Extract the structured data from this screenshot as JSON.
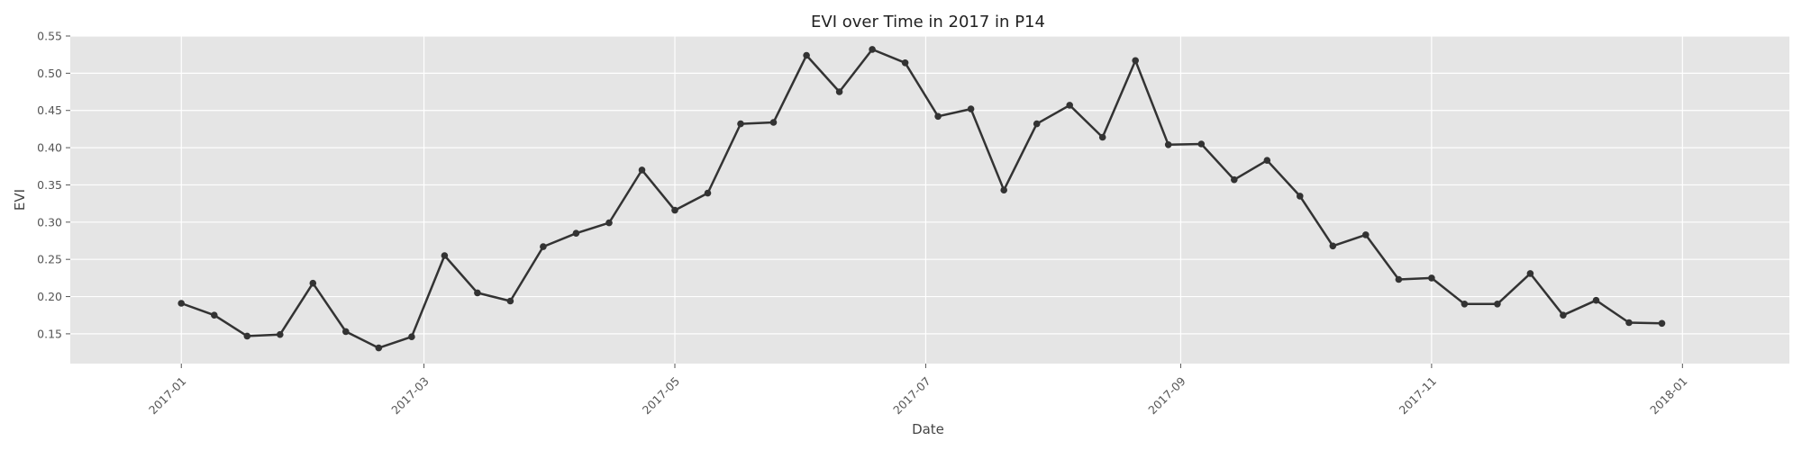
{
  "chart_data": {
    "type": "line",
    "title": "EVI over Time in 2017 in P14",
    "xlabel": "Date",
    "ylabel": "EVI",
    "xlim": [
      "2016-12-05",
      "2018-01-27"
    ],
    "ylim": [
      0.11,
      0.55
    ],
    "x_ticks": [
      "2017-01",
      "2017-03",
      "2017-05",
      "2017-07",
      "2017-09",
      "2017-11",
      "2018-01"
    ],
    "x_tick_dates": [
      "2017-01-01",
      "2017-03-01",
      "2017-05-01",
      "2017-07-01",
      "2017-09-01",
      "2017-11-01",
      "2018-01-01"
    ],
    "y_ticks": [
      "0.15",
      "0.20",
      "0.25",
      "0.30",
      "0.35",
      "0.40",
      "0.45",
      "0.50",
      "0.55"
    ],
    "grid": true,
    "legend": "none",
    "colors": {
      "background": "#e5e5e5",
      "grid": "#ffffff",
      "line": "#333333"
    },
    "series": [
      {
        "x": [
          "2017-01-01",
          "2017-01-09",
          "2017-01-17",
          "2017-01-25",
          "2017-02-02",
          "2017-02-10",
          "2017-02-18",
          "2017-02-26",
          "2017-03-06",
          "2017-03-14",
          "2017-03-22",
          "2017-03-30",
          "2017-04-07",
          "2017-04-15",
          "2017-04-23",
          "2017-05-01",
          "2017-05-09",
          "2017-05-17",
          "2017-05-25",
          "2017-06-02",
          "2017-06-10",
          "2017-06-18",
          "2017-06-26",
          "2017-07-04",
          "2017-07-12",
          "2017-07-20",
          "2017-07-28",
          "2017-08-05",
          "2017-08-13",
          "2017-08-21",
          "2017-08-29",
          "2017-09-06",
          "2017-09-14",
          "2017-09-22",
          "2017-09-30",
          "2017-10-08",
          "2017-10-16",
          "2017-10-24",
          "2017-11-01",
          "2017-11-09",
          "2017-11-17",
          "2017-11-25",
          "2017-12-03",
          "2017-12-11",
          "2017-12-19",
          "2017-12-27"
        ],
        "values": [
          0.191,
          0.175,
          0.147,
          0.149,
          0.218,
          0.153,
          0.131,
          0.146,
          0.255,
          0.205,
          0.194,
          0.267,
          0.285,
          0.299,
          0.37,
          0.316,
          0.339,
          0.432,
          0.434,
          0.524,
          0.475,
          0.532,
          0.514,
          0.442,
          0.452,
          0.343,
          0.432,
          0.457,
          0.414,
          0.517,
          0.404,
          0.405,
          0.357,
          0.383,
          0.335,
          0.268,
          0.283,
          0.223,
          0.225,
          0.19,
          0.19,
          0.231,
          0.175,
          0.195,
          0.165,
          0.164
        ]
      }
    ]
  }
}
